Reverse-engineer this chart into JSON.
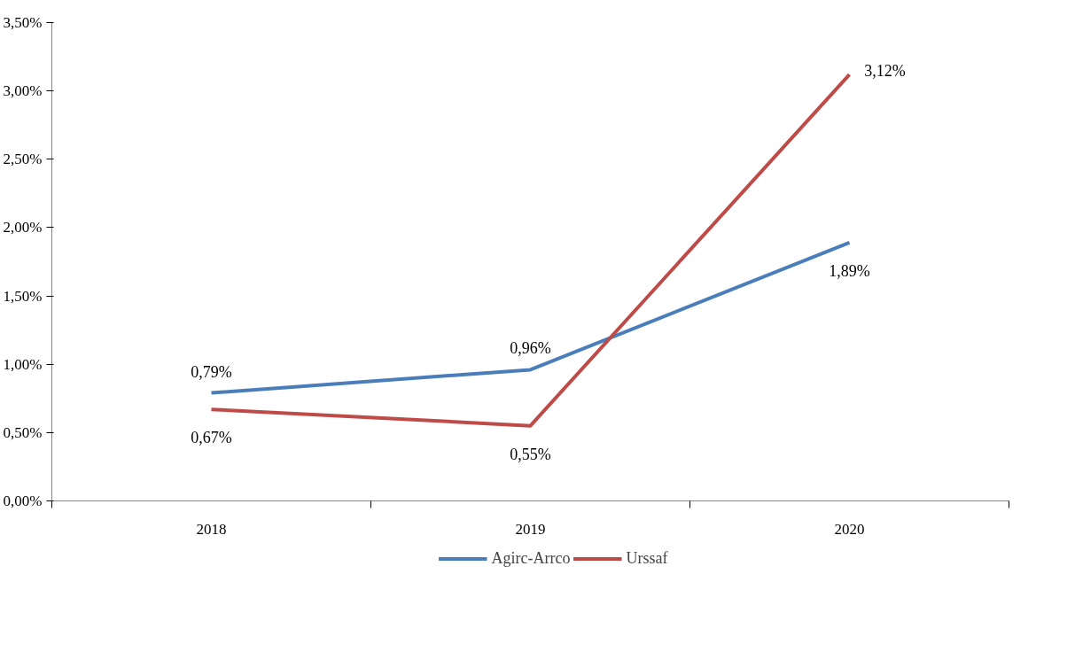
{
  "chart_data": {
    "type": "line",
    "categories": [
      "2018",
      "2019",
      "2020"
    ],
    "series": [
      {
        "name": "Agirc-Arrco",
        "color": "#4a7ebb",
        "values": [
          0.79,
          0.96,
          1.89
        ],
        "value_labels": [
          "0,79%",
          "0,96%",
          "1,89%"
        ]
      },
      {
        "name": "Urssaf",
        "color": "#be4b48",
        "values": [
          0.67,
          0.55,
          3.12
        ],
        "value_labels": [
          "0,67%",
          "0,55%",
          "3,12%"
        ]
      }
    ],
    "ylim": [
      0,
      3.5
    ],
    "yticks": [
      {
        "value": 0,
        "label": "0,00%"
      },
      {
        "value": 0.5,
        "label": "0,50%"
      },
      {
        "value": 1,
        "label": "1,00%"
      },
      {
        "value": 1.5,
        "label": "1,50%"
      },
      {
        "value": 2,
        "label": "2,00%"
      },
      {
        "value": 2.5,
        "label": "2,50%"
      },
      {
        "value": 3,
        "label": "3,00%"
      },
      {
        "value": 3.5,
        "label": "3,50%"
      }
    ],
    "grid": false,
    "legend": "bottom",
    "marker": "none",
    "line_style": "solid"
  }
}
